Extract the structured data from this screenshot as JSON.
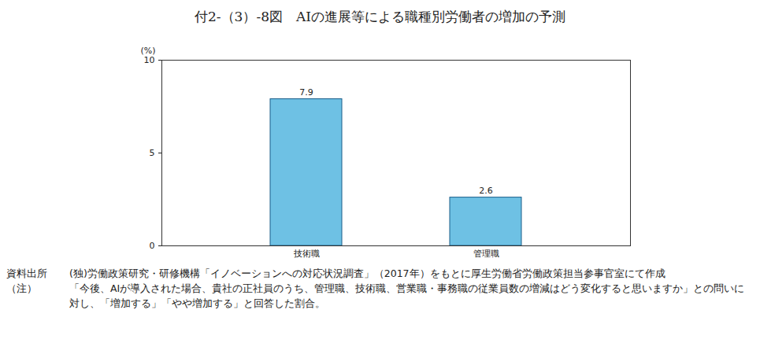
{
  "chart_data": {
    "type": "bar",
    "title": "付2-（3）-8図　AIの進展等による職種別労働者の増加の予測",
    "y_label": "(%)",
    "categories": [
      "技術職",
      "管理職"
    ],
    "values": [
      7.9,
      2.6
    ],
    "color": "#6ec1e4",
    "ylim": [
      0,
      10
    ],
    "yticks": [
      0,
      5,
      10
    ],
    "data_labels": true,
    "annotations": [
      {
        "label": "資料出所",
        "text": "(独)労働政策研究・研修機構「イノベーションへの対応状況調査」（2017年）をもとに厚生労働省労働政策担当参事官室にて作成"
      },
      {
        "label": "（注）",
        "text": "「今後、AIが導入された場合、貴社の正社員のうち、管理職、技術職、営業職・事務職の従業員数の増減はどう変化すると思いますか」との問いに対し、「増加する」「やや増加する」と回答した割合。"
      }
    ]
  }
}
